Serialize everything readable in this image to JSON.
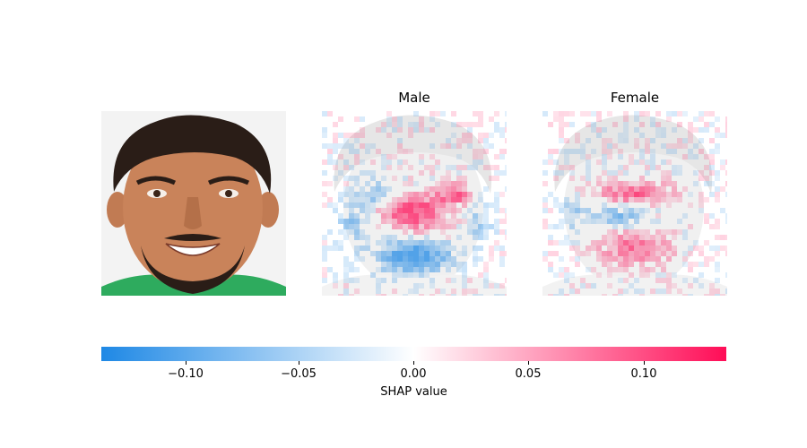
{
  "chart_data": {
    "type": "heatmap",
    "panels": [
      {
        "id": "input",
        "title": "",
        "content": "photo of smiling man"
      },
      {
        "id": "male",
        "title": "Male"
      },
      {
        "id": "female",
        "title": "Female"
      }
    ],
    "colorbar": {
      "label": "SHAP value",
      "range": [
        -0.135,
        0.135
      ],
      "ticks": [
        -0.1,
        -0.05,
        0.0,
        0.05,
        0.1
      ],
      "tick_labels": [
        "−0.10",
        "−0.05",
        "0.00",
        "0.05",
        "0.10"
      ],
      "low_color": "#1E88E5",
      "mid_color": "#ffffff",
      "high_color": "#FF0D57"
    }
  },
  "colors": {
    "skin": "#c9835a",
    "hair": "#2a1d17",
    "shirt": "#2eab5e",
    "background": "#f3f3f3"
  }
}
